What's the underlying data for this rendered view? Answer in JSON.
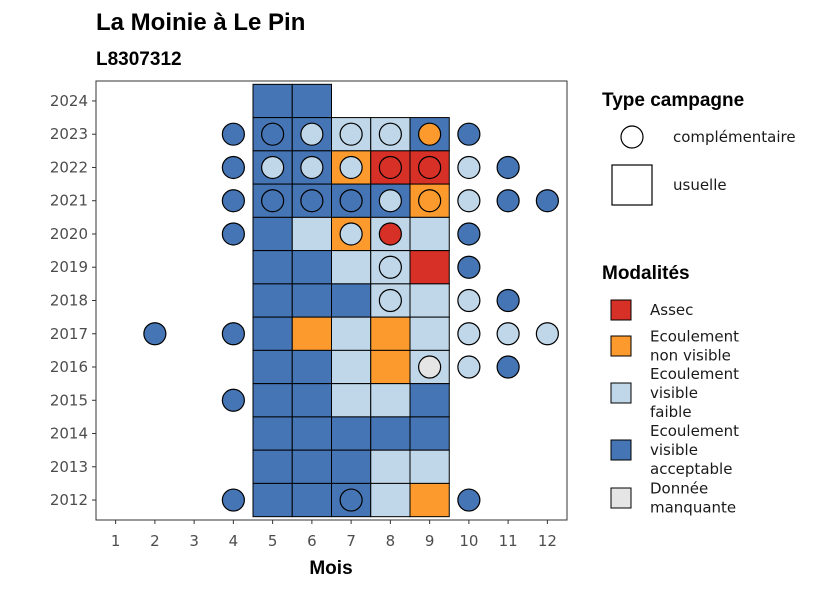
{
  "chart_data": {
    "type": "heatmap",
    "title": "La Moinie  à  Le Pin",
    "subtitle": "L8307312",
    "xlabel": "Mois",
    "ylabel": "",
    "x_ticks": [
      "1",
      "2",
      "3",
      "4",
      "5",
      "6",
      "7",
      "8",
      "9",
      "10",
      "11",
      "12"
    ],
    "y_ticks": [
      "2012",
      "2013",
      "2014",
      "2015",
      "2016",
      "2017",
      "2018",
      "2019",
      "2020",
      "2021",
      "2022",
      "2023",
      "2024"
    ],
    "xlim": [
      0.5,
      12.5
    ],
    "ylim": [
      2011.4,
      2024.6
    ],
    "colors": {
      "assec": "#d73027",
      "nonvisible": "#fd9a2e",
      "faible": "#bfd7e8",
      "acceptable": "#4575b4",
      "manquante": "#e5e5e5"
    },
    "usuelle": [
      {
        "year": 2024,
        "month": 5,
        "mod": "acceptable"
      },
      {
        "year": 2024,
        "month": 6,
        "mod": "acceptable"
      },
      {
        "year": 2023,
        "month": 5,
        "mod": "acceptable"
      },
      {
        "year": 2023,
        "month": 6,
        "mod": "acceptable"
      },
      {
        "year": 2023,
        "month": 7,
        "mod": "faible"
      },
      {
        "year": 2023,
        "month": 8,
        "mod": "faible"
      },
      {
        "year": 2023,
        "month": 9,
        "mod": "acceptable"
      },
      {
        "year": 2022,
        "month": 5,
        "mod": "acceptable"
      },
      {
        "year": 2022,
        "month": 6,
        "mod": "acceptable"
      },
      {
        "year": 2022,
        "month": 7,
        "mod": "nonvisible"
      },
      {
        "year": 2022,
        "month": 8,
        "mod": "assec"
      },
      {
        "year": 2022,
        "month": 9,
        "mod": "assec"
      },
      {
        "year": 2021,
        "month": 5,
        "mod": "acceptable"
      },
      {
        "year": 2021,
        "month": 6,
        "mod": "acceptable"
      },
      {
        "year": 2021,
        "month": 7,
        "mod": "acceptable"
      },
      {
        "year": 2021,
        "month": 8,
        "mod": "acceptable"
      },
      {
        "year": 2021,
        "month": 9,
        "mod": "nonvisible"
      },
      {
        "year": 2020,
        "month": 5,
        "mod": "acceptable"
      },
      {
        "year": 2020,
        "month": 6,
        "mod": "faible"
      },
      {
        "year": 2020,
        "month": 7,
        "mod": "nonvisible"
      },
      {
        "year": 2020,
        "month": 8,
        "mod": "faible"
      },
      {
        "year": 2020,
        "month": 9,
        "mod": "faible"
      },
      {
        "year": 2019,
        "month": 5,
        "mod": "acceptable"
      },
      {
        "year": 2019,
        "month": 6,
        "mod": "acceptable"
      },
      {
        "year": 2019,
        "month": 7,
        "mod": "faible"
      },
      {
        "year": 2019,
        "month": 8,
        "mod": "faible"
      },
      {
        "year": 2019,
        "month": 9,
        "mod": "assec"
      },
      {
        "year": 2018,
        "month": 5,
        "mod": "acceptable"
      },
      {
        "year": 2018,
        "month": 6,
        "mod": "acceptable"
      },
      {
        "year": 2018,
        "month": 7,
        "mod": "acceptable"
      },
      {
        "year": 2018,
        "month": 8,
        "mod": "faible"
      },
      {
        "year": 2018,
        "month": 9,
        "mod": "faible"
      },
      {
        "year": 2017,
        "month": 5,
        "mod": "acceptable"
      },
      {
        "year": 2017,
        "month": 6,
        "mod": "nonvisible"
      },
      {
        "year": 2017,
        "month": 7,
        "mod": "faible"
      },
      {
        "year": 2017,
        "month": 8,
        "mod": "nonvisible"
      },
      {
        "year": 2017,
        "month": 9,
        "mod": "faible"
      },
      {
        "year": 2016,
        "month": 5,
        "mod": "acceptable"
      },
      {
        "year": 2016,
        "month": 6,
        "mod": "acceptable"
      },
      {
        "year": 2016,
        "month": 7,
        "mod": "faible"
      },
      {
        "year": 2016,
        "month": 8,
        "mod": "nonvisible"
      },
      {
        "year": 2016,
        "month": 9,
        "mod": "faible"
      },
      {
        "year": 2015,
        "month": 5,
        "mod": "acceptable"
      },
      {
        "year": 2015,
        "month": 6,
        "mod": "acceptable"
      },
      {
        "year": 2015,
        "month": 7,
        "mod": "faible"
      },
      {
        "year": 2015,
        "month": 8,
        "mod": "faible"
      },
      {
        "year": 2015,
        "month": 9,
        "mod": "acceptable"
      },
      {
        "year": 2014,
        "month": 5,
        "mod": "acceptable"
      },
      {
        "year": 2014,
        "month": 6,
        "mod": "acceptable"
      },
      {
        "year": 2014,
        "month": 7,
        "mod": "acceptable"
      },
      {
        "year": 2014,
        "month": 8,
        "mod": "acceptable"
      },
      {
        "year": 2014,
        "month": 9,
        "mod": "acceptable"
      },
      {
        "year": 2013,
        "month": 5,
        "mod": "acceptable"
      },
      {
        "year": 2013,
        "month": 6,
        "mod": "acceptable"
      },
      {
        "year": 2013,
        "month": 7,
        "mod": "acceptable"
      },
      {
        "year": 2013,
        "month": 8,
        "mod": "faible"
      },
      {
        "year": 2013,
        "month": 9,
        "mod": "faible"
      },
      {
        "year": 2012,
        "month": 5,
        "mod": "acceptable"
      },
      {
        "year": 2012,
        "month": 6,
        "mod": "acceptable"
      },
      {
        "year": 2012,
        "month": 7,
        "mod": "acceptable"
      },
      {
        "year": 2012,
        "month": 8,
        "mod": "faible"
      },
      {
        "year": 2012,
        "month": 9,
        "mod": "nonvisible"
      }
    ],
    "complementaire": [
      {
        "year": 2023,
        "month": 4,
        "mod": "acceptable"
      },
      {
        "year": 2023,
        "month": 5,
        "mod": "acceptable"
      },
      {
        "year": 2023,
        "month": 6,
        "mod": "faible"
      },
      {
        "year": 2023,
        "month": 7,
        "mod": "faible"
      },
      {
        "year": 2023,
        "month": 8,
        "mod": "faible"
      },
      {
        "year": 2023,
        "month": 9,
        "mod": "nonvisible"
      },
      {
        "year": 2023,
        "month": 10,
        "mod": "acceptable"
      },
      {
        "year": 2022,
        "month": 4,
        "mod": "acceptable"
      },
      {
        "year": 2022,
        "month": 5,
        "mod": "faible"
      },
      {
        "year": 2022,
        "month": 6,
        "mod": "faible"
      },
      {
        "year": 2022,
        "month": 7,
        "mod": "faible"
      },
      {
        "year": 2022,
        "month": 8,
        "mod": "assec"
      },
      {
        "year": 2022,
        "month": 9,
        "mod": "assec"
      },
      {
        "year": 2022,
        "month": 10,
        "mod": "faible"
      },
      {
        "year": 2022,
        "month": 11,
        "mod": "acceptable"
      },
      {
        "year": 2021,
        "month": 4,
        "mod": "acceptable"
      },
      {
        "year": 2021,
        "month": 5,
        "mod": "acceptable"
      },
      {
        "year": 2021,
        "month": 6,
        "mod": "acceptable"
      },
      {
        "year": 2021,
        "month": 7,
        "mod": "acceptable"
      },
      {
        "year": 2021,
        "month": 8,
        "mod": "faible"
      },
      {
        "year": 2021,
        "month": 9,
        "mod": "nonvisible"
      },
      {
        "year": 2021,
        "month": 10,
        "mod": "faible"
      },
      {
        "year": 2021,
        "month": 11,
        "mod": "acceptable"
      },
      {
        "year": 2021,
        "month": 12,
        "mod": "acceptable"
      },
      {
        "year": 2020,
        "month": 4,
        "mod": "acceptable"
      },
      {
        "year": 2020,
        "month": 7,
        "mod": "faible"
      },
      {
        "year": 2020,
        "month": 8,
        "mod": "assec"
      },
      {
        "year": 2020,
        "month": 10,
        "mod": "acceptable"
      },
      {
        "year": 2019,
        "month": 8,
        "mod": "faible"
      },
      {
        "year": 2019,
        "month": 10,
        "mod": "acceptable"
      },
      {
        "year": 2018,
        "month": 8,
        "mod": "faible"
      },
      {
        "year": 2018,
        "month": 10,
        "mod": "faible"
      },
      {
        "year": 2018,
        "month": 11,
        "mod": "acceptable"
      },
      {
        "year": 2017,
        "month": 2,
        "mod": "acceptable"
      },
      {
        "year": 2017,
        "month": 4,
        "mod": "acceptable"
      },
      {
        "year": 2017,
        "month": 10,
        "mod": "faible"
      },
      {
        "year": 2017,
        "month": 11,
        "mod": "faible"
      },
      {
        "year": 2017,
        "month": 12,
        "mod": "faible"
      },
      {
        "year": 2016,
        "month": 9,
        "mod": "manquante"
      },
      {
        "year": 2016,
        "month": 10,
        "mod": "faible"
      },
      {
        "year": 2016,
        "month": 11,
        "mod": "acceptable"
      },
      {
        "year": 2015,
        "month": 4,
        "mod": "acceptable"
      },
      {
        "year": 2012,
        "month": 4,
        "mod": "acceptable"
      },
      {
        "year": 2012,
        "month": 7,
        "mod": "acceptable"
      },
      {
        "year": 2012,
        "month": 10,
        "mod": "acceptable"
      }
    ],
    "legend": {
      "type_title": "Type campagne",
      "type_items": [
        {
          "shape": "circle",
          "label": "complémentaire"
        },
        {
          "shape": "square",
          "label": "usuelle"
        }
      ],
      "mod_title": "Modalités",
      "mod_items": [
        {
          "mod": "assec",
          "lines": [
            "Assec"
          ]
        },
        {
          "mod": "nonvisible",
          "lines": [
            "Ecoulement",
            "non visible"
          ]
        },
        {
          "mod": "faible",
          "lines": [
            "Ecoulement",
            "visible",
            "faible"
          ]
        },
        {
          "mod": "acceptable",
          "lines": [
            "Ecoulement",
            "visible",
            "acceptable"
          ]
        },
        {
          "mod": "manquante",
          "lines": [
            "Donnée",
            "manquante"
          ]
        }
      ]
    }
  }
}
